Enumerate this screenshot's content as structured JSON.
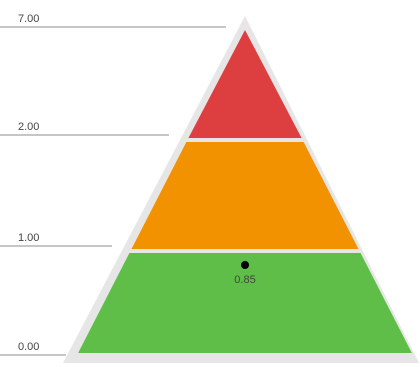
{
  "chart_data": {
    "type": "pyramid",
    "bands": [
      {
        "from": 0.0,
        "to": 1.0,
        "color": "#5fbe47"
      },
      {
        "from": 1.0,
        "to": 2.0,
        "color": "#f29200"
      },
      {
        "from": 2.0,
        "to": 7.0,
        "color": "#dd3e40"
      }
    ],
    "tick_labels": [
      "0.00",
      "1.00",
      "2.00",
      "7.00"
    ],
    "marker": {
      "value": 0.85,
      "label": "0.85",
      "color": "#000000"
    },
    "colors": {
      "outline": "#e6e6e6",
      "tick_line": "#8c8c8c",
      "text": "#444444"
    }
  }
}
